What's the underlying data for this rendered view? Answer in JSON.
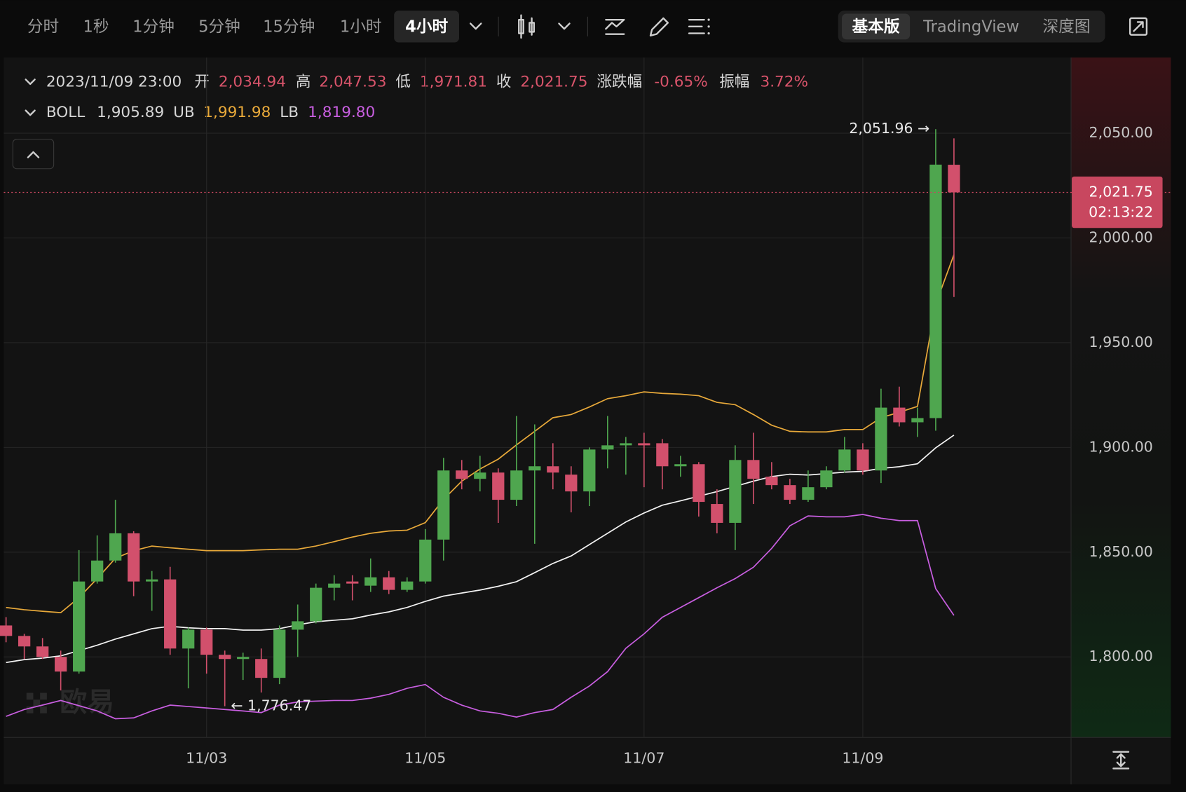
{
  "toolbar": {
    "intervals": [
      "分时",
      "1秒",
      "1分钟",
      "5分钟",
      "15分钟",
      "1小时",
      "4小时"
    ],
    "selected": 6,
    "views": [
      "基本版",
      "TradingView",
      "深度图"
    ],
    "selected_view": 0
  },
  "info": {
    "datetime": "2023/11/09 23:00",
    "fields": [
      {
        "name": "开",
        "text": "2,034.94"
      },
      {
        "name": "高",
        "text": "2,047.53"
      },
      {
        "name": "低",
        "text": "1,971.81"
      },
      {
        "name": "收",
        "text": "2,021.75"
      },
      {
        "name": "涨跌幅",
        "text": "-0.65%"
      },
      {
        "name": "振幅",
        "text": "3.72%"
      }
    ]
  },
  "watermark": "欧易",
  "chart_data": {
    "type": "candlestick",
    "categories": [
      null,
      null,
      null,
      null,
      null,
      null,
      null,
      null,
      null,
      null,
      null,
      "11/03",
      null,
      null,
      null,
      null,
      null,
      null,
      null,
      null,
      null,
      null,
      null,
      "11/05",
      null,
      null,
      null,
      null,
      null,
      null,
      null,
      null,
      null,
      null,
      null,
      "11/07",
      null,
      null,
      null,
      null,
      null,
      null,
      null,
      null,
      null,
      null,
      null,
      "11/09",
      null,
      null,
      null,
      null,
      null
    ],
    "open": [
      1815,
      1810,
      1805,
      1800,
      1793,
      1836,
      1846,
      1859,
      1836,
      1837,
      1804,
      1813,
      1801,
      1799,
      1799,
      1790,
      1813,
      1817,
      1833,
      1836,
      1834,
      1838,
      1832,
      1836,
      1856,
      1889,
      1885,
      1888,
      1875,
      1889,
      1891,
      1887,
      1879,
      1899,
      1901,
      1902,
      1902,
      1891,
      1892,
      1873,
      1864,
      1894,
      1886,
      1882,
      1875,
      1881,
      1889,
      1899,
      1889,
      1919,
      1912,
      1914,
      2034.94
    ],
    "high": [
      1819,
      1811,
      1809,
      1803,
      1851,
      1858,
      1875,
      1860,
      1841,
      1843,
      1814,
      1814,
      1803,
      1802,
      1804,
      1815,
      1825,
      1835,
      1839,
      1839,
      1847,
      1841,
      1838,
      1861,
      1895,
      1894,
      1896,
      1890,
      1915,
      1911,
      1902,
      1891,
      1900,
      1915,
      1905,
      1907,
      1904,
      1896,
      1893,
      1880,
      1901,
      1907,
      1893,
      1885,
      1889,
      1891,
      1905,
      1902,
      1928,
      1929,
      1919,
      2051.96,
      2047.53
    ],
    "low": [
      1807,
      1799,
      1799,
      1784,
      1792,
      1835,
      1845,
      1829,
      1822,
      1801,
      1785,
      1792,
      1776.47,
      1789,
      1783,
      1787,
      1800,
      1816,
      1827,
      1827,
      1831,
      1830,
      1831,
      1835,
      1846,
      1880,
      1879,
      1864,
      1872,
      1854,
      1880,
      1869,
      1872,
      1890,
      1887,
      1881,
      1880,
      1886,
      1867,
      1859,
      1851,
      1873,
      1880,
      1873,
      1874,
      1880,
      1888,
      1887,
      1883,
      1910,
      1905,
      1908,
      1971.81
    ],
    "close": [
      1810,
      1805,
      1800,
      1793,
      1836,
      1846,
      1859,
      1836,
      1837,
      1804,
      1813,
      1801,
      1799,
      1800,
      1790,
      1813,
      1817,
      1833,
      1835,
      1835,
      1838,
      1832,
      1836,
      1856,
      1889,
      1885,
      1888,
      1875,
      1889,
      1891,
      1888,
      1879,
      1899,
      1901,
      1902,
      1901,
      1891,
      1892,
      1874,
      1864,
      1894,
      1885,
      1882,
      1875,
      1881,
      1889,
      1899,
      1889,
      1919,
      1912,
      1914,
      2035,
      2021.75
    ],
    "up_color": "#4fa64f",
    "down_color": "#d2506c",
    "series": [
      {
        "name": "BOLL",
        "color": "#f2f2f2",
        "legend_text": "1,905.89",
        "values": [
          1797.3,
          1798.7,
          1799.4,
          1800.5,
          1803,
          1805.6,
          1808.5,
          1811,
          1813.5,
          1814.6,
          1813.9,
          1813.5,
          1813.5,
          1812.8,
          1812.8,
          1813.5,
          1815.3,
          1816.8,
          1817.5,
          1818.2,
          1820,
          1821.5,
          1823.6,
          1826.5,
          1829,
          1830.5,
          1831.9,
          1833.7,
          1835.9,
          1840.2,
          1844.6,
          1848.2,
          1853.6,
          1859,
          1864.4,
          1868.7,
          1872.4,
          1874.5,
          1876.7,
          1878.9,
          1881.4,
          1883.9,
          1886.1,
          1887.2,
          1886.8,
          1887.5,
          1888.2,
          1888.6,
          1890,
          1890.8,
          1892.2,
          1899.8,
          1905.89
        ]
      },
      {
        "name": "UB",
        "color": "#e8a93a",
        "legend_text": "1,991.98",
        "values": [
          1823.6,
          1822.5,
          1821.8,
          1821.1,
          1828.3,
          1837.4,
          1847.1,
          1850.7,
          1852.9,
          1852.1,
          1851.4,
          1850.7,
          1850.7,
          1850.7,
          1851.1,
          1851.4,
          1851.4,
          1852.9,
          1855,
          1857.2,
          1859,
          1860.1,
          1860.5,
          1864.1,
          1875.2,
          1883.9,
          1889.7,
          1894.4,
          1901.2,
          1907.7,
          1914.2,
          1915.7,
          1919.3,
          1923.3,
          1924.7,
          1926.5,
          1925.8,
          1925.4,
          1924.7,
          1921.5,
          1920.4,
          1915.7,
          1910.6,
          1907.7,
          1907.4,
          1907.4,
          1908.5,
          1908.5,
          1914.2,
          1916.8,
          1919.6,
          1968.4,
          1991.98
        ]
      },
      {
        "name": "LB",
        "color": "#c85ee0",
        "legend_text": "1,819.80",
        "values": [
          1771.6,
          1774.9,
          1777,
          1779.2,
          1776.7,
          1774.2,
          1770.5,
          1770.9,
          1774.2,
          1777,
          1776.3,
          1775.6,
          1774.9,
          1774.2,
          1773.4,
          1777,
          1778.5,
          1778.9,
          1779.2,
          1779.2,
          1780.3,
          1782.1,
          1785,
          1786.8,
          1780.7,
          1777,
          1774.2,
          1773.1,
          1771.3,
          1773.4,
          1774.9,
          1780.7,
          1786.1,
          1793,
          1804.1,
          1811,
          1818.9,
          1823.6,
          1828.3,
          1833,
          1837.4,
          1842.8,
          1851.8,
          1862.6,
          1867.3,
          1866.9,
          1866.9,
          1868,
          1866.2,
          1865.1,
          1865.1,
          1832.6,
          1819.8
        ]
      }
    ],
    "ylim": [
      1761.5,
      2085.5
    ],
    "yticks": [
      {
        "value": 1800,
        "label": "1,800.00"
      },
      {
        "value": 1850,
        "label": "1,850.00"
      },
      {
        "value": 1900,
        "label": "1,900.00"
      },
      {
        "value": 1950,
        "label": "1,950.00"
      },
      {
        "value": 2000,
        "label": "2,000.00"
      },
      {
        "value": 2050,
        "label": "2,050.00"
      }
    ],
    "grid": true,
    "annotations": [
      {
        "text": "2,051.96 →",
        "index": 51,
        "value": 2051.96,
        "side": "left"
      },
      {
        "text": "← 1,776.47",
        "index": 12,
        "value": 1776.47,
        "side": "right"
      }
    ],
    "last_price": {
      "value": 2021.75,
      "text": "2,021.75",
      "countdown": "02:13:22",
      "color": "#c8475f"
    }
  }
}
